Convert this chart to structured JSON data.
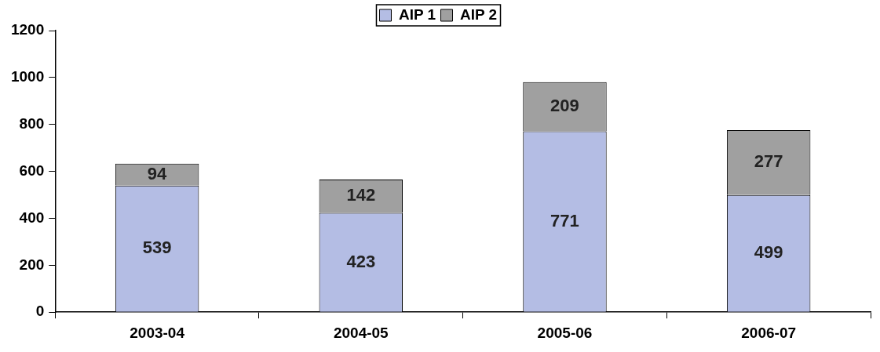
{
  "chart_data": {
    "type": "bar",
    "stacked": true,
    "categories": [
      "2003-04",
      "2004-05",
      "2005-06",
      "2006-07"
    ],
    "series": [
      {
        "name": "AIP 1",
        "color": "#b4bde4",
        "values": [
          539,
          423,
          771,
          499
        ]
      },
      {
        "name": "AIP 2",
        "color": "#a0a0a0",
        "values": [
          94,
          142,
          209,
          277
        ]
      }
    ],
    "ylim": [
      0,
      1200
    ],
    "yticks": [
      0,
      200,
      400,
      600,
      800,
      1000,
      1200
    ],
    "grid": false,
    "legend": "top",
    "data_labels": true
  }
}
